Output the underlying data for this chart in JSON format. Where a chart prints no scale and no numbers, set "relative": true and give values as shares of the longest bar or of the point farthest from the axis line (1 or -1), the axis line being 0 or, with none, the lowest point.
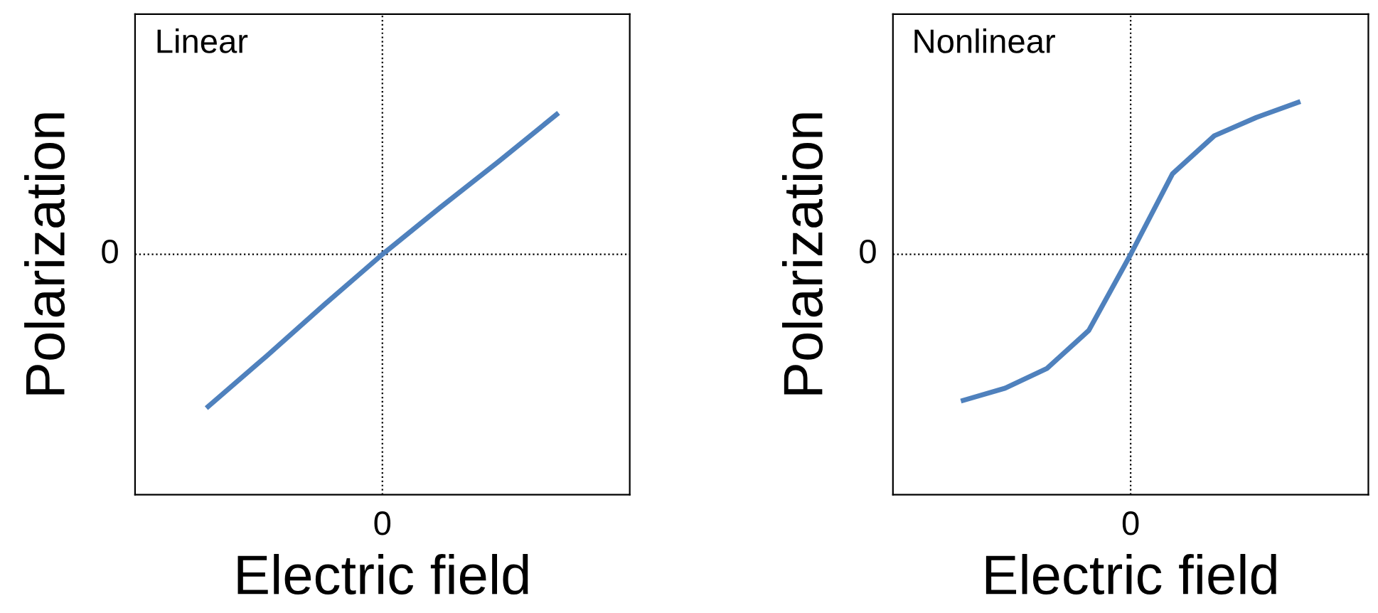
{
  "chart_data": [
    {
      "type": "line",
      "title": "Linear",
      "xlabel": "Electric field",
      "ylabel": "Polarization",
      "relative": true,
      "categories": [
        null,
        null,
        null,
        null,
        null,
        null,
        null
      ],
      "ref_lines": [
        {
          "axis": "x",
          "label": "0",
          "color": "#000000",
          "line_style": "dotted"
        },
        {
          "axis": "y",
          "value": 0,
          "label": "0",
          "color": "#000000",
          "line_style": "dotted"
        }
      ],
      "series": [
        {
          "color": "#4f81bd",
          "values": [
            -1,
            -0.67,
            -0.33,
            0,
            0.31,
            0.61,
            0.92
          ]
        }
      ]
    },
    {
      "type": "line",
      "title": "Nonlinear",
      "xlabel": "Electric field",
      "ylabel": "Polarization",
      "relative": true,
      "categories": [
        null,
        null,
        null,
        null,
        null,
        null,
        null,
        null,
        null
      ],
      "ref_lines": [
        {
          "axis": "x",
          "label": "0",
          "color": "#000000",
          "line_style": "dotted"
        },
        {
          "axis": "y",
          "value": 0,
          "label": "0",
          "color": "#000000",
          "line_style": "dotted"
        }
      ],
      "series": [
        {
          "color": "#4f81bd",
          "values": [
            -0.96,
            -0.88,
            -0.75,
            -0.5,
            0,
            0.53,
            0.78,
            0.9,
            1
          ]
        }
      ]
    }
  ]
}
